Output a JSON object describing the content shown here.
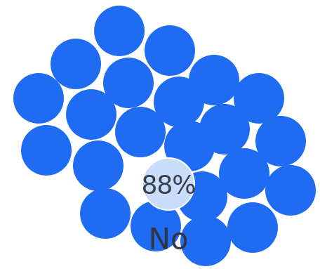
{
  "poll": {
    "selected_option": {
      "percent_label": "88%",
      "answer_label": "No"
    },
    "bubble_count": 26,
    "colors": {
      "bubble": "#1f6cf2",
      "selected_bubble": "#c9dcfa",
      "label_text": "#2f3440"
    }
  }
}
